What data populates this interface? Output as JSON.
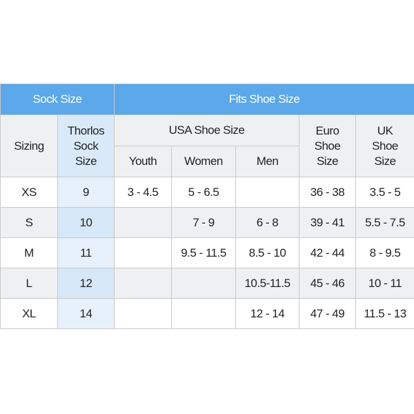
{
  "header": {
    "sock_size": "Sock Size",
    "fits_shoe_size": "Fits Shoe Size"
  },
  "columns": {
    "sizing": "Sizing",
    "thorlos": [
      "Thorlos",
      "Sock",
      "Size"
    ],
    "usa": "USA Shoe Size",
    "youth": "Youth",
    "women": "Women",
    "men": "Men",
    "euro": [
      "Euro",
      "Shoe",
      "Size"
    ],
    "uk": [
      "UK",
      "Shoe",
      "Size"
    ]
  },
  "rows": [
    {
      "sizing": "XS",
      "thorlos": "9",
      "youth": "3 - 4.5",
      "women": "5 - 6.5",
      "men": "",
      "euro": "36 - 38",
      "uk": "3.5 - 5"
    },
    {
      "sizing": "S",
      "thorlos": "10",
      "youth": "",
      "women": "7 - 9",
      "men": "6 - 8",
      "euro": "39 - 41",
      "uk": "5.5 - 7.5"
    },
    {
      "sizing": "M",
      "thorlos": "11",
      "youth": "",
      "women": "9.5 - 11.5",
      "men": "8.5 - 10",
      "euro": "42 - 44",
      "uk": "8 - 9.5"
    },
    {
      "sizing": "L",
      "thorlos": "12",
      "youth": "",
      "women": "",
      "men": "10.5-11.5",
      "euro": "45 - 46",
      "uk": "10 - 11"
    },
    {
      "sizing": "XL",
      "thorlos": "14",
      "youth": "",
      "women": "",
      "men": "12 - 14",
      "euro": "47 - 49",
      "uk": "11.5 - 13"
    }
  ],
  "colors": {
    "header_blue": "#5ba8ea",
    "grey_band": "#eef0f1",
    "thorlos_highlight": "#d6e7f8"
  }
}
